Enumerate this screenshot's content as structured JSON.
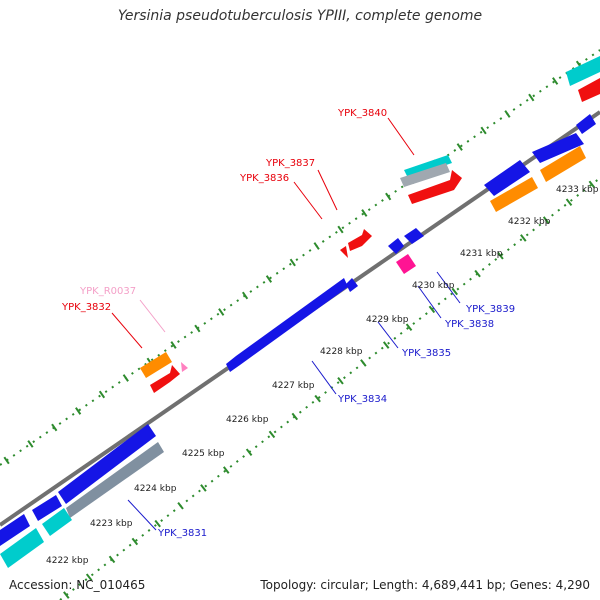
{
  "title": "Yersinia pseudotuberculosis YPIII, complete genome",
  "footer": {
    "accession": "Accession: NC_010465",
    "summary": "Topology: circular; Length: 4,689,441 bp; Genes: 4,290"
  },
  "colors": {
    "forward_label": "#e8000b",
    "reverse_label": "#1a1acc",
    "rna_label": "#f4a0c8",
    "cds_forward": "#f01010",
    "cds_reverse": "#1515e6",
    "gene_orange": "#ff8c00",
    "gene_cyan": "#00cccc",
    "trna_pink": "#ff80c0",
    "backbone": "#808080",
    "tick_dots": "#2e8b2e"
  },
  "ticks": [
    "4222 kbp",
    "4223 kbp",
    "4224 kbp",
    "4225 kbp",
    "4226 kbp",
    "4227 kbp",
    "4228 kbp",
    "4229 kbp",
    "4230 kbp",
    "4231 kbp",
    "4232 kbp",
    "4233 kbp"
  ],
  "gene_labels": [
    {
      "text": "YPK_3840",
      "strand": "forward"
    },
    {
      "text": "YPK_3837",
      "strand": "forward"
    },
    {
      "text": "YPK_3836",
      "strand": "forward"
    },
    {
      "text": "YPK_R0037",
      "strand": "rna"
    },
    {
      "text": "YPK_3832",
      "strand": "forward"
    },
    {
      "text": "YPK_3839",
      "strand": "reverse"
    },
    {
      "text": "YPK_3838",
      "strand": "reverse"
    },
    {
      "text": "YPK_3835",
      "strand": "reverse"
    },
    {
      "text": "YPK_3834",
      "strand": "reverse"
    },
    {
      "text": "YPK_3831",
      "strand": "reverse"
    }
  ]
}
